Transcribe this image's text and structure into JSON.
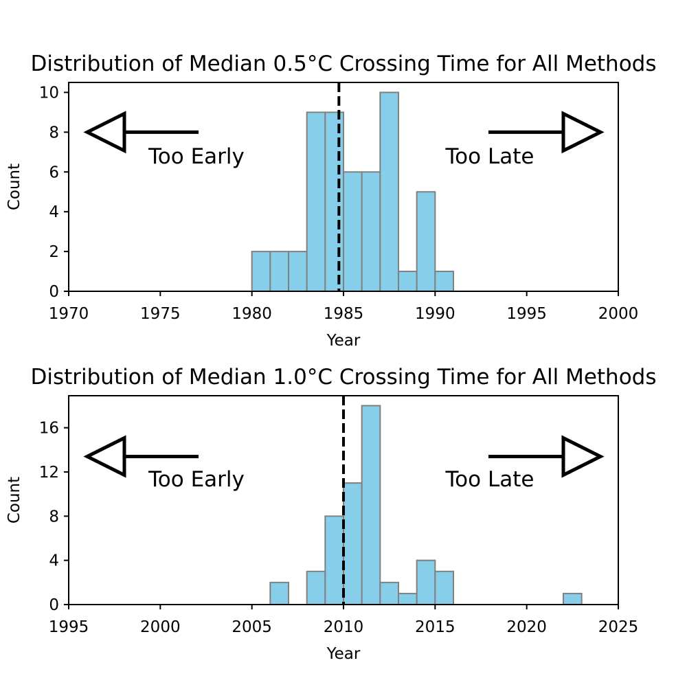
{
  "chart_data": [
    {
      "type": "bar",
      "title": "Distribution of Median 0.5°C Crossing Time for All Methods",
      "xlabel": "Year",
      "ylabel": "Count",
      "xlim": [
        1970,
        2000
      ],
      "ylim": [
        0,
        10.5
      ],
      "xticks": [
        "1970",
        "1975",
        "1980",
        "1985",
        "1990",
        "1995",
        "2000"
      ],
      "yticks": [
        "0",
        "2",
        "4",
        "6",
        "8",
        "10"
      ],
      "bins": [
        {
          "start": 1980,
          "end": 1981,
          "count": 2
        },
        {
          "start": 1981,
          "end": 1982,
          "count": 2
        },
        {
          "start": 1982,
          "end": 1983,
          "count": 2
        },
        {
          "start": 1983,
          "end": 1984,
          "count": 9
        },
        {
          "start": 1984,
          "end": 1985,
          "count": 9
        },
        {
          "start": 1985,
          "end": 1986,
          "count": 6
        },
        {
          "start": 1986,
          "end": 1987,
          "count": 6
        },
        {
          "start": 1987,
          "end": 1988,
          "count": 10
        },
        {
          "start": 1988,
          "end": 1989,
          "count": 1
        },
        {
          "start": 1989,
          "end": 1990,
          "count": 5
        },
        {
          "start": 1990,
          "end": 1991,
          "count": 1
        }
      ],
      "median_line": 1984.75,
      "annotations": {
        "early": "Too Early",
        "late": "Too Late"
      },
      "arrow_y": 8,
      "bar_color": "#87CEEB",
      "bar_edge_color": "#808080",
      "grid": false
    },
    {
      "type": "bar",
      "title": "Distribution of Median 1.0°C Crossing Time for All Methods",
      "xlabel": "Year",
      "ylabel": "Count",
      "xlim": [
        1995,
        2025
      ],
      "ylim": [
        0,
        18.9
      ],
      "xticks": [
        "1995",
        "2000",
        "2005",
        "2010",
        "2015",
        "2020",
        "2025"
      ],
      "yticks": [
        "0",
        "4",
        "8",
        "12",
        "16"
      ],
      "bins": [
        {
          "start": 2006,
          "end": 2007,
          "count": 2
        },
        {
          "start": 2008,
          "end": 2009,
          "count": 3
        },
        {
          "start": 2009,
          "end": 2010,
          "count": 8
        },
        {
          "start": 2010,
          "end": 2011,
          "count": 11
        },
        {
          "start": 2011,
          "end": 2012,
          "count": 18
        },
        {
          "start": 2012,
          "end": 2013,
          "count": 2
        },
        {
          "start": 2013,
          "end": 2014,
          "count": 1
        },
        {
          "start": 2014,
          "end": 2015,
          "count": 4
        },
        {
          "start": 2015,
          "end": 2016,
          "count": 3
        },
        {
          "start": 2022,
          "end": 2023,
          "count": 1
        }
      ],
      "median_line": 2010,
      "annotations": {
        "early": "Too Early",
        "late": "Too Late"
      },
      "arrow_y": 13.4,
      "bar_color": "#87CEEB",
      "bar_edge_color": "#808080",
      "grid": false
    }
  ]
}
